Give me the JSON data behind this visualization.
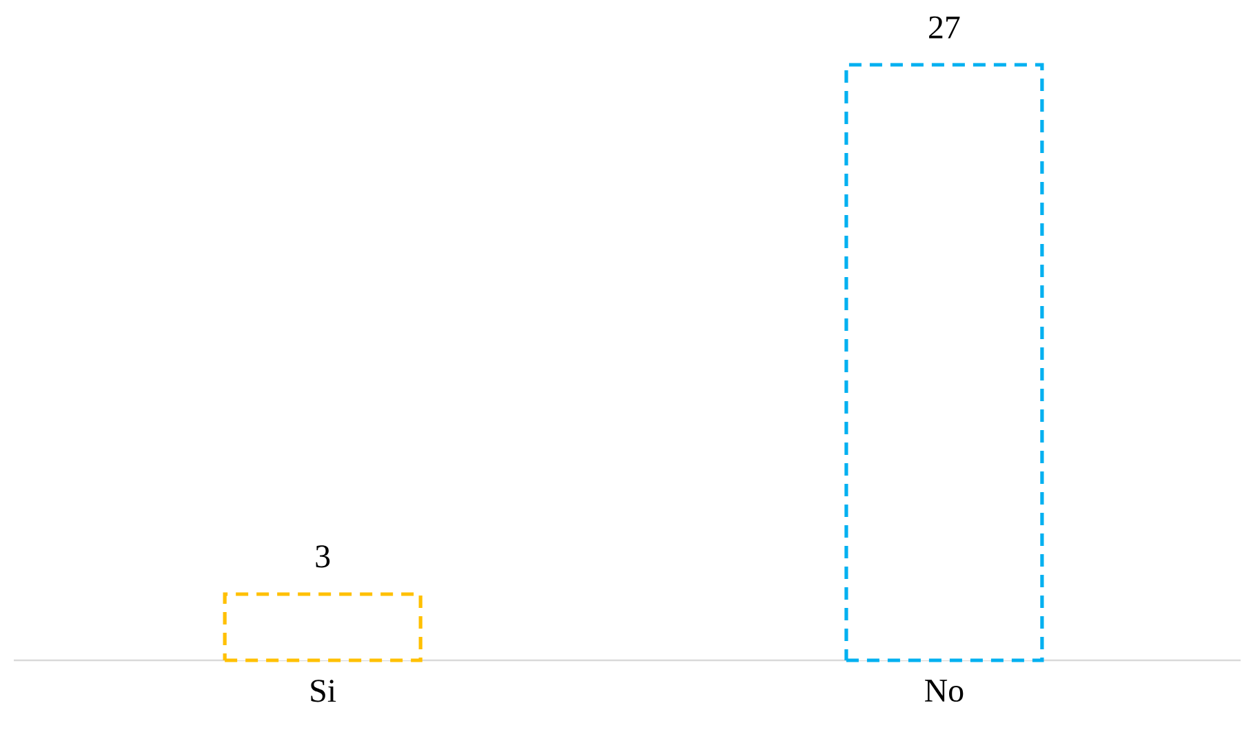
{
  "chart_data": {
    "type": "bar",
    "categories": [
      "Si",
      "No"
    ],
    "values": [
      3,
      27
    ],
    "colors": [
      "#ffc000",
      "#00b0f0"
    ],
    "line_style": "dashed",
    "data_labels": true
  }
}
